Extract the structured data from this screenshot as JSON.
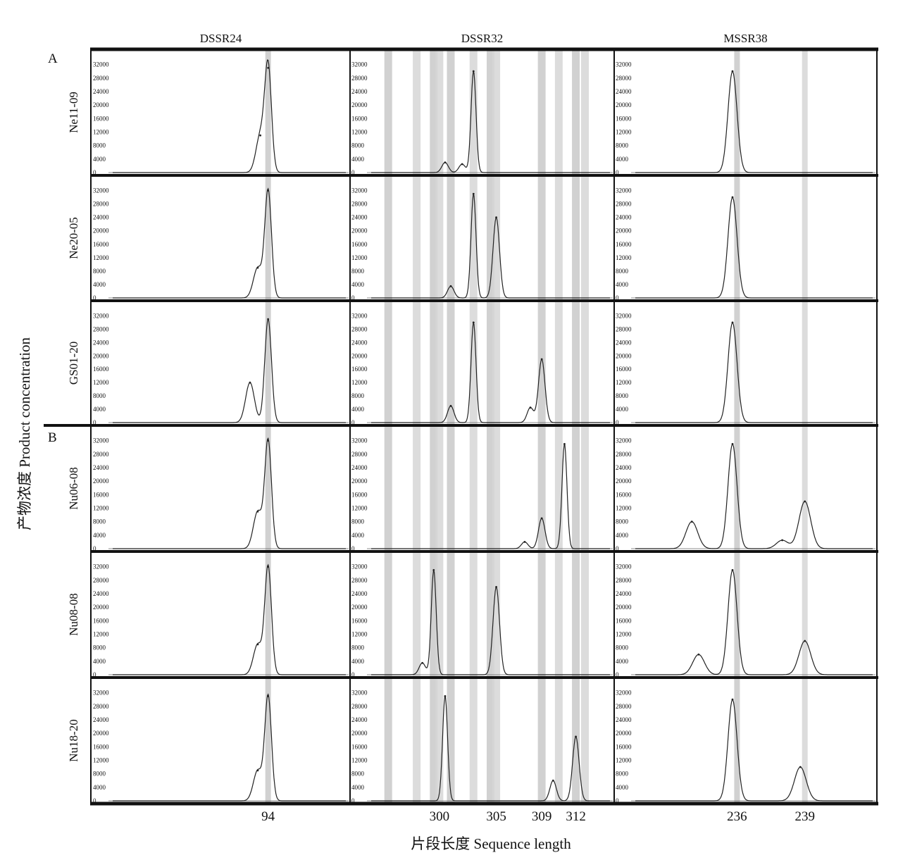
{
  "figure": {
    "ylabel": "产物浓度 Product concentration",
    "xlabel": "片段长度 Sequence length",
    "group_labels": [
      "A",
      "B"
    ]
  },
  "chart_data": {
    "type": "line",
    "y_ticks": [
      0,
      4000,
      8000,
      12000,
      16000,
      20000,
      24000,
      28000,
      32000
    ],
    "ylim": [
      0,
      34000
    ],
    "markers": [
      "DSSR24",
      "DSSR32",
      "MSSR38"
    ],
    "samples": [
      "Ne11-09",
      "Ne20-05",
      "GS01-20",
      "Nu06-08",
      "Nu08-08",
      "Nu18-20"
    ],
    "sample_groups": [
      "A",
      "A",
      "A",
      "B",
      "B",
      "B"
    ],
    "columns": [
      {
        "marker": "DSSR24",
        "xlim": [
          88,
          97
        ],
        "bins": [
          94
        ],
        "x_tick_labels": [
          {
            "value": 94,
            "label": "94"
          }
        ],
        "peaks": [
          [
            {
              "x": 94.0,
              "y": 31000
            },
            {
              "x": 93.7,
              "y": 11000
            }
          ],
          [
            {
              "x": 94.0,
              "y": 32000
            },
            {
              "x": 93.6,
              "y": 9000
            }
          ],
          [
            {
              "x": 94.0,
              "y": 31000
            },
            {
              "x": 93.3,
              "y": 12000
            }
          ],
          [
            {
              "x": 94.0,
              "y": 32000
            },
            {
              "x": 93.6,
              "y": 11000
            }
          ],
          [
            {
              "x": 94.0,
              "y": 32000
            },
            {
              "x": 93.6,
              "y": 9000
            }
          ],
          [
            {
              "x": 94.0,
              "y": 31000
            },
            {
              "x": 93.6,
              "y": 9000
            }
          ]
        ]
      },
      {
        "marker": "DSSR32",
        "xlim": [
          294,
          315
        ],
        "bins": [
          295.5,
          298,
          299.5,
          300,
          301,
          303,
          304.5,
          305,
          309,
          310.5,
          312,
          312.8
        ],
        "x_tick_labels": [
          {
            "value": 300,
            "label": "300"
          },
          {
            "value": 305,
            "label": "305"
          },
          {
            "value": 309,
            "label": "309"
          },
          {
            "value": 312,
            "label": "312"
          }
        ],
        "peaks": [
          [
            {
              "x": 303,
              "y": 30000
            },
            {
              "x": 302,
              "y": 2500
            },
            {
              "x": 300.5,
              "y": 3000
            }
          ],
          [
            {
              "x": 303,
              "y": 31000
            },
            {
              "x": 305,
              "y": 24000
            },
            {
              "x": 301,
              "y": 3500
            }
          ],
          [
            {
              "x": 303,
              "y": 30000
            },
            {
              "x": 309,
              "y": 19000
            },
            {
              "x": 301,
              "y": 5000
            },
            {
              "x": 308,
              "y": 4500
            }
          ],
          [
            {
              "x": 311,
              "y": 31000
            },
            {
              "x": 309,
              "y": 9000
            },
            {
              "x": 307.5,
              "y": 2000
            }
          ],
          [
            {
              "x": 299.5,
              "y": 31000
            },
            {
              "x": 305,
              "y": 26000
            },
            {
              "x": 298.5,
              "y": 3500
            }
          ],
          [
            {
              "x": 300.5,
              "y": 31000
            },
            {
              "x": 312,
              "y": 19000
            },
            {
              "x": 310,
              "y": 6000
            }
          ]
        ]
      },
      {
        "marker": "MSSR38",
        "xlim": [
          231.5,
          242
        ],
        "bins": [
          236,
          239
        ],
        "x_tick_labels": [
          {
            "value": 236,
            "label": "236"
          },
          {
            "value": 239,
            "label": "239"
          }
        ],
        "peaks": [
          [
            {
              "x": 235.8,
              "y": 30000
            }
          ],
          [
            {
              "x": 235.8,
              "y": 30000
            }
          ],
          [
            {
              "x": 235.8,
              "y": 30000
            }
          ],
          [
            {
              "x": 235.8,
              "y": 31000
            },
            {
              "x": 234.0,
              "y": 8000
            },
            {
              "x": 239.0,
              "y": 14000
            },
            {
              "x": 238.0,
              "y": 2500
            }
          ],
          [
            {
              "x": 235.8,
              "y": 31000
            },
            {
              "x": 234.3,
              "y": 6000
            },
            {
              "x": 239.0,
              "y": 10000
            }
          ],
          [
            {
              "x": 235.8,
              "y": 30000
            },
            {
              "x": 238.8,
              "y": 10000
            }
          ]
        ]
      }
    ]
  }
}
